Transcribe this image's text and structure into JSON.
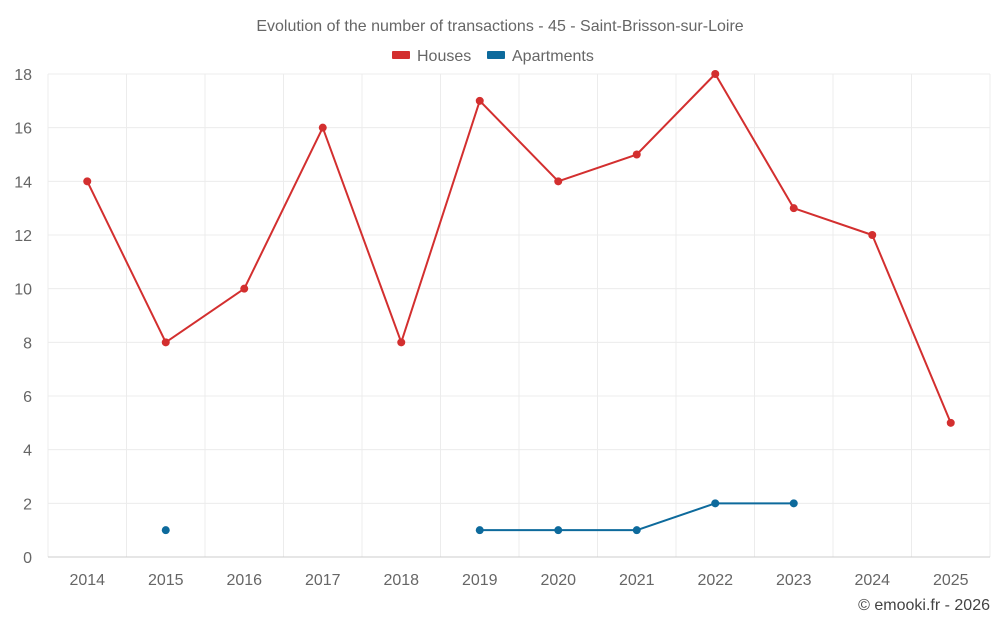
{
  "chart_data": {
    "type": "line",
    "title": "Evolution of the number of transactions - 45 - Saint-Brisson-sur-Loire",
    "xlabel": "",
    "ylabel": "",
    "categories": [
      "2014",
      "2015",
      "2016",
      "2017",
      "2018",
      "2019",
      "2020",
      "2021",
      "2022",
      "2023",
      "2024",
      "2025"
    ],
    "ylim": [
      0,
      18
    ],
    "yticks": [
      0,
      2,
      4,
      6,
      8,
      10,
      12,
      14,
      16,
      18
    ],
    "grid": true,
    "legend_position": "top-center",
    "series": [
      {
        "name": "Houses",
        "color": "#d32f2f",
        "values": [
          14,
          8,
          10,
          16,
          8,
          17,
          14,
          15,
          18,
          13,
          12,
          5
        ]
      },
      {
        "name": "Apartments",
        "color": "#0d6a9c",
        "values": [
          null,
          1,
          null,
          null,
          null,
          1,
          1,
          1,
          2,
          2,
          null,
          null
        ]
      }
    ]
  },
  "credit": "© emooki.fr - 2026"
}
